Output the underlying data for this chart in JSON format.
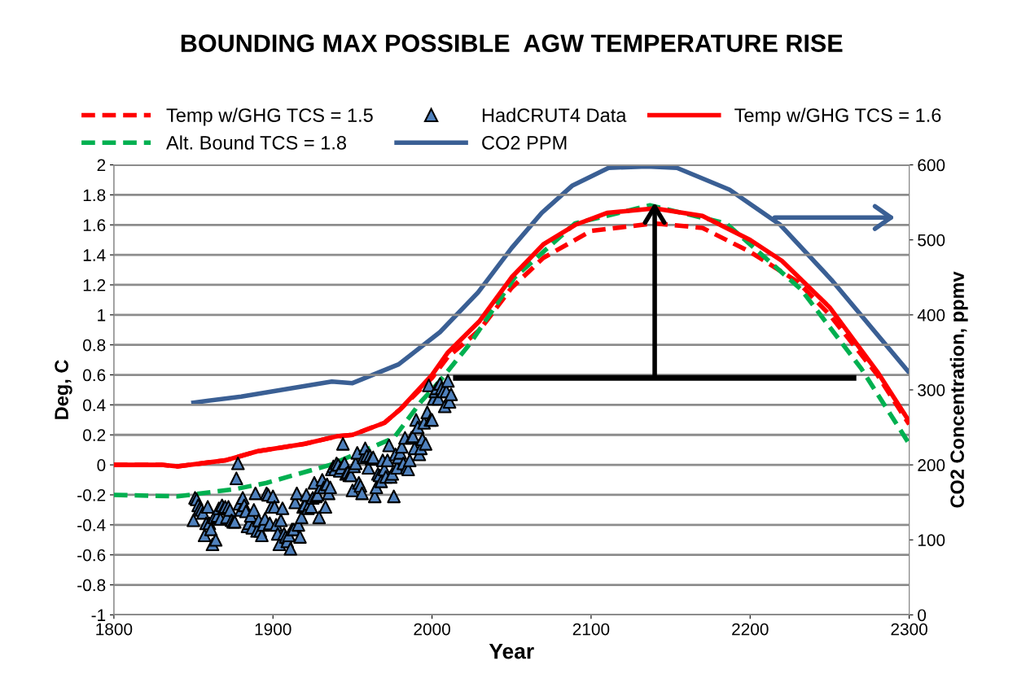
{
  "chart_data": {
    "type": "line",
    "title": "BOUNDING MAX POSSIBLE  AGW TEMPERATURE RISE",
    "xlabel": "Year",
    "ylabel": "Deg, C",
    "y2label": "CO2 Concentration, ppmv",
    "xlim": [
      1800,
      2300
    ],
    "xticks": [
      1800,
      1900,
      2000,
      2100,
      2200,
      2300
    ],
    "ylim": [
      -1,
      2
    ],
    "yticks": [
      -1,
      -0.8,
      -0.6,
      -0.4,
      -0.2,
      0,
      0.2,
      0.4,
      0.6,
      0.8,
      1,
      1.2,
      1.4,
      1.6,
      1.8,
      2
    ],
    "y2lim": [
      0,
      600
    ],
    "y2ticks": [
      0,
      100,
      200,
      300,
      400,
      500,
      600
    ],
    "grid": "y",
    "legend": "top",
    "series": [
      {
        "name": "Temp w/GHG TCS = 1.5",
        "line_style": "dashed",
        "color": "#ff0000",
        "x": [
          1800,
          1830,
          1840,
          1870,
          1890,
          1920,
          1940,
          1950,
          1970,
          1980,
          2000,
          2010,
          2030,
          2050,
          2070,
          2100,
          2140,
          2170,
          2200,
          2230,
          2250,
          2280,
          2300
        ],
        "values": [
          0,
          0,
          -0.01,
          0.03,
          0.09,
          0.14,
          0.19,
          0.2,
          0.28,
          0.37,
          0.58,
          0.72,
          0.9,
          1.18,
          1.38,
          1.56,
          1.61,
          1.58,
          1.42,
          1.22,
          1.0,
          0.6,
          0.27
        ]
      },
      {
        "name": "Alt. Bound TCS = 1.8",
        "line_style": "dashed",
        "color": "#00b050",
        "x": [
          1800,
          1840,
          1877,
          1896,
          1936,
          1976,
          1993,
          2005,
          2024,
          2052,
          2090,
          2137,
          2185,
          2232,
          2270,
          2300
        ],
        "values": [
          -0.2,
          -0.21,
          -0.16,
          -0.12,
          0.0,
          0.18,
          0.42,
          0.56,
          0.81,
          1.25,
          1.61,
          1.73,
          1.61,
          1.17,
          0.64,
          0.14
        ]
      },
      {
        "name": "HadCRUT4 Data",
        "type": "scatter",
        "marker": "triangle",
        "color": "#4f81bd",
        "x": [
          1850,
          1851,
          1852,
          1853,
          1854,
          1855,
          1856,
          1857,
          1858,
          1859,
          1860,
          1861,
          1862,
          1863,
          1864,
          1865,
          1866,
          1867,
          1868,
          1869,
          1870,
          1871,
          1872,
          1873,
          1874,
          1875,
          1876,
          1877,
          1878,
          1879,
          1880,
          1881,
          1882,
          1883,
          1884,
          1885,
          1886,
          1887,
          1888,
          1889,
          1890,
          1891,
          1892,
          1893,
          1894,
          1895,
          1896,
          1897,
          1898,
          1899,
          1900,
          1901,
          1902,
          1903,
          1904,
          1905,
          1906,
          1907,
          1908,
          1909,
          1910,
          1911,
          1912,
          1913,
          1914,
          1915,
          1916,
          1917,
          1918,
          1919,
          1920,
          1921,
          1922,
          1923,
          1924,
          1925,
          1926,
          1927,
          1928,
          1929,
          1930,
          1931,
          1932,
          1933,
          1934,
          1935,
          1936,
          1937,
          1938,
          1939,
          1940,
          1941,
          1942,
          1943,
          1944,
          1945,
          1946,
          1947,
          1948,
          1949,
          1950,
          1951,
          1952,
          1953,
          1954,
          1955,
          1956,
          1957,
          1958,
          1959,
          1960,
          1961,
          1962,
          1963,
          1964,
          1965,
          1966,
          1967,
          1968,
          1969,
          1970,
          1971,
          1972,
          1973,
          1974,
          1975,
          1976,
          1977,
          1978,
          1979,
          1980,
          1981,
          1982,
          1983,
          1984,
          1985,
          1986,
          1987,
          1988,
          1989,
          1990,
          1991,
          1992,
          1993,
          1994,
          1995,
          1996,
          1997,
          1998,
          1999,
          2000,
          2001,
          2002,
          2003,
          2004,
          2005,
          2006,
          2007,
          2008,
          2009,
          2010,
          2011,
          2012
        ],
        "values": [
          -0.37,
          -0.22,
          -0.23,
          -0.27,
          -0.29,
          -0.3,
          -0.32,
          -0.47,
          -0.39,
          -0.28,
          -0.39,
          -0.43,
          -0.53,
          -0.35,
          -0.5,
          -0.34,
          -0.29,
          -0.36,
          -0.27,
          -0.29,
          -0.28,
          -0.35,
          -0.28,
          -0.3,
          -0.37,
          -0.38,
          -0.38,
          -0.09,
          0.01,
          -0.26,
          -0.3,
          -0.22,
          -0.27,
          -0.31,
          -0.41,
          -0.39,
          -0.34,
          -0.42,
          -0.3,
          -0.19,
          -0.44,
          -0.37,
          -0.44,
          -0.47,
          -0.4,
          -0.36,
          -0.19,
          -0.2,
          -0.39,
          -0.28,
          -0.21,
          -0.28,
          -0.4,
          -0.46,
          -0.53,
          -0.37,
          -0.29,
          -0.46,
          -0.48,
          -0.51,
          -0.47,
          -0.56,
          -0.43,
          -0.43,
          -0.25,
          -0.19,
          -0.4,
          -0.48,
          -0.35,
          -0.28,
          -0.27,
          -0.2,
          -0.29,
          -0.26,
          -0.28,
          -0.22,
          -0.12,
          -0.21,
          -0.2,
          -0.35,
          -0.15,
          -0.1,
          -0.15,
          -0.28,
          -0.13,
          -0.19,
          -0.15,
          -0.03,
          -0.01,
          -0.03,
          0.01,
          0.0,
          -0.04,
          -0.02,
          0.14,
          0.01,
          -0.06,
          -0.05,
          -0.07,
          -0.07,
          -0.17,
          -0.01,
          0.01,
          0.08,
          -0.12,
          -0.14,
          -0.19,
          0.05,
          0.11,
          0.06,
          -0.02,
          0.06,
          0.04,
          0.05,
          -0.21,
          -0.15,
          -0.06,
          -0.07,
          -0.11,
          0.03,
          -0.03,
          -0.08,
          0.03,
          0.13,
          -0.08,
          -0.06,
          -0.21,
          0.07,
          -0.02,
          0.05,
          0.08,
          0.12,
          0.01,
          0.18,
          -0.02,
          -0.03,
          0.03,
          0.18,
          0.19,
          0.11,
          0.3,
          0.25,
          0.07,
          0.11,
          0.17,
          0.28,
          0.14,
          0.35,
          0.53,
          0.3,
          0.3,
          0.44,
          0.49,
          0.51,
          0.44,
          0.54,
          0.51,
          0.49,
          0.39,
          0.49,
          0.56,
          0.42,
          0.47
        ]
      },
      {
        "name": "CO2 PPM",
        "line_style": "solid",
        "axis": "y2",
        "color": "#3a5f94",
        "x": [
          1850,
          1880,
          1900,
          1937,
          1950,
          1979,
          2005,
          2029,
          2050,
          2069,
          2088,
          2111,
          2135,
          2154,
          2187,
          2219,
          2251,
          2300
        ],
        "values": [
          283,
          291,
          298,
          311,
          309,
          334,
          377,
          430,
          489,
          536,
          572,
          596,
          598,
          596,
          567,
          520,
          447,
          323
        ]
      },
      {
        "type": "line",
        "line_style": "solid",
        "color": "#000000",
        "x": [
          2015,
          2265
        ],
        "values": [
          0.58,
          0.58
        ]
      },
      {
        "name": "Temp w/GHG TCS = 1.6",
        "line_style": "solid",
        "color": "#ff0000",
        "x": [
          1800,
          1830,
          1840,
          1870,
          1890,
          1920,
          1940,
          1950,
          1970,
          1980,
          2000,
          2010,
          2030,
          2050,
          2070,
          2090,
          2110,
          2140,
          2170,
          2200,
          2220,
          2250,
          2280,
          2300
        ],
        "values": [
          0,
          0,
          -0.01,
          0.03,
          0.09,
          0.14,
          0.19,
          0.2,
          0.28,
          0.37,
          0.6,
          0.75,
          0.96,
          1.25,
          1.47,
          1.6,
          1.68,
          1.71,
          1.66,
          1.5,
          1.36,
          1.05,
          0.62,
          0.29
        ]
      }
    ]
  }
}
